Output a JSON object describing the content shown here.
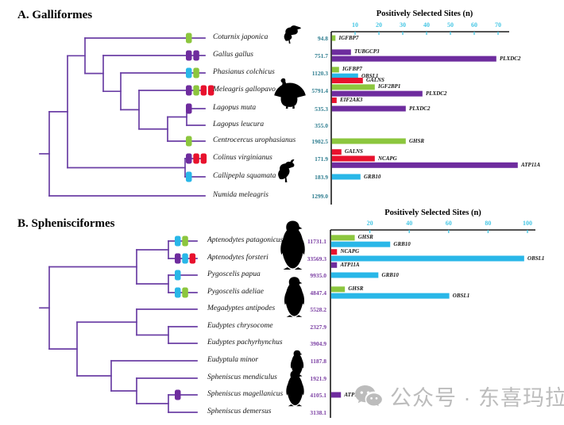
{
  "figure_titles": {
    "a": "A. Galliformes",
    "b": "B. Sphenisciformes"
  },
  "watermark": {
    "text": "公众号 · 东喜玛拉雅",
    "icon": "wechat-icon"
  },
  "colors": {
    "green": "#8CC63E",
    "purple": "#6E2C9E",
    "blue": "#29B7E8",
    "red": "#E8112D",
    "tree": "#6B3FA5",
    "axis_line": "#1a1a1a",
    "axis_tick": "#45C6E4",
    "value_a": "#2E7D8F",
    "value_b": "#7B3FA3",
    "silhouette": "#000000"
  },
  "chart_data": [
    {
      "type": "bar",
      "group": "A. Galliformes",
      "title": "Positively Selected Sites (n)",
      "xlabel": "Positively Selected Sites (n)",
      "axis_ticks": [
        10,
        20,
        30,
        40,
        50,
        60,
        70
      ],
      "xlim": [
        0,
        80
      ],
      "species": [
        {
          "name": "Coturnix japonica",
          "branch_value": "94.8",
          "markers": [
            "green"
          ],
          "bars": [
            {
              "gene": "IGFBP7",
              "color": "green",
              "n": 1.5
            }
          ],
          "bird": "quail"
        },
        {
          "name": "Gallus gallus",
          "branch_value": "751.7",
          "markers": [
            "purple",
            "purple"
          ],
          "bars": [
            {
              "gene": "TUBGCP3",
              "color": "purple",
              "n": 8
            },
            {
              "gene": "PLXDC2",
              "color": "purple",
              "n": 69
            }
          ]
        },
        {
          "name": "Phasianus colchicus",
          "branch_value": "1120.3",
          "markers": [
            "blue",
            "green"
          ],
          "bars": [
            {
              "gene": "IGFBP7",
              "color": "green",
              "n": 3
            },
            {
              "gene": "OBSL1",
              "color": "blue",
              "n": 11
            }
          ]
        },
        {
          "name": "Meleagris gallopavo",
          "branch_value": "5791.4",
          "markers": [
            "purple",
            "green",
            "red",
            "red"
          ],
          "bars": [
            {
              "gene": "GALNS",
              "color": "red",
              "n": 13
            },
            {
              "gene": "IGF2BP1",
              "color": "green",
              "n": 18
            },
            {
              "gene": "PLXDC2",
              "color": "purple",
              "n": 38
            },
            {
              "gene": "EIF2AK3",
              "color": "red",
              "n": 2
            }
          ],
          "bird": "turkey"
        },
        {
          "name": "Lagopus muta",
          "branch_value": "535.3",
          "markers": [
            "purple"
          ],
          "bars": [
            {
              "gene": "PLXDC2",
              "color": "purple",
              "n": 31
            }
          ]
        },
        {
          "name": "Lagopus leucura",
          "branch_value": "355.0",
          "markers": [],
          "bars": []
        },
        {
          "name": "Centrocercus urophasianus",
          "branch_value": "1902.5",
          "markers": [
            "green"
          ],
          "bars": [
            {
              "gene": "GHSR",
              "color": "green",
              "n": 31
            }
          ]
        },
        {
          "name": "Colinus virginianus",
          "branch_value": "171.9",
          "markers": [
            "purple",
            "red",
            "red"
          ],
          "bars": [
            {
              "gene": "GALNS",
              "color": "red",
              "n": 4
            },
            {
              "gene": "NCAPG",
              "color": "red",
              "n": 18
            },
            {
              "gene": "ATP11A",
              "color": "purple",
              "n": 78
            }
          ]
        },
        {
          "name": "Callipepla squamata",
          "branch_value": "183.9",
          "markers": [
            "blue"
          ],
          "bars": [
            {
              "gene": "GRB10",
              "color": "blue",
              "n": 12
            }
          ],
          "bird": "quail-crest"
        },
        {
          "name": "Numida meleagris",
          "branch_value": "1299.0",
          "markers": [],
          "bars": []
        }
      ],
      "tree": {
        "x": 62,
        "c": [
          {
            "x": 85,
            "c": [
              {
                "x": 107,
                "c": [
                  {
                    "leaf": 0
                  },
                  {
                    "x": 130,
                    "c": [
                      {
                        "leaf": 1
                      },
                      {
                        "x": 152,
                        "c": [
                          {
                            "leaf": 2
                          },
                          {
                            "x": 175,
                            "c": [
                              {
                                "leaf": 3
                              },
                              {
                                "x": 211,
                                "c": [
                                  {
                                    "x": 235,
                                    "c": [
                                      {
                                        "leaf": 4
                                      },
                                      {
                                        "leaf": 5
                                      }
                                    ]
                                  },
                                  {
                                    "leaf": 6
                                  }
                                ]
                              }
                            ]
                          }
                        ]
                      }
                    ]
                  }
                ]
              },
              {
                "x": 233,
                "c": [
                  {
                    "leaf": 7
                  },
                  {
                    "leaf": 8
                  }
                ]
              }
            ]
          },
          {
            "leaf": 9
          }
        ]
      }
    },
    {
      "type": "bar",
      "group": "B. Sphenisciformes",
      "title": "Positively Selected Sites (n)",
      "xlabel": "Positively Selected Sites (n)",
      "axis_ticks": [
        20,
        40,
        60,
        80,
        100
      ],
      "xlim": [
        0,
        105
      ],
      "species": [
        {
          "name": "Aptenodytes patagonicus",
          "branch_value": "11731.1",
          "markers": [
            "blue",
            "green"
          ],
          "bars": [
            {
              "gene": "GHSR",
              "color": "green",
              "n": 12
            },
            {
              "gene": "GRB10",
              "color": "blue",
              "n": 30
            }
          ],
          "bird": "penguin"
        },
        {
          "name": "Aptenodytes forsteri",
          "branch_value": "33569.3",
          "markers": [
            "purple",
            "blue",
            "red"
          ],
          "bars": [
            {
              "gene": "NCAPG",
              "color": "red",
              "n": 3
            },
            {
              "gene": "OBSL1",
              "color": "blue",
              "n": 98
            },
            {
              "gene": "ATP11A",
              "color": "purple",
              "n": 3
            }
          ]
        },
        {
          "name": "Pygoscelis papua",
          "branch_value": "9935.0",
          "markers": [
            "blue"
          ],
          "bars": [
            {
              "gene": "GRB10",
              "color": "blue",
              "n": 24
            }
          ]
        },
        {
          "name": "Pygoscelis adeliae",
          "branch_value": "4847.4",
          "markers": [
            "blue",
            "green"
          ],
          "bars": [
            {
              "gene": "GHSR",
              "color": "green",
              "n": 7
            },
            {
              "gene": "OBSL1",
              "color": "blue",
              "n": 60
            }
          ],
          "bird": "penguin"
        },
        {
          "name": "Megadyptes antipodes",
          "branch_value": "5528.2",
          "markers": [],
          "bars": []
        },
        {
          "name": "Eudyptes chrysocome",
          "branch_value": "2327.9",
          "markers": [],
          "bars": []
        },
        {
          "name": "Eudyptes pachyrhynchus",
          "branch_value": "3904.9",
          "markers": [],
          "bars": []
        },
        {
          "name": "Eudyptula minor",
          "branch_value": "1187.8",
          "markers": [],
          "bars": [],
          "bird": "penguin"
        },
        {
          "name": "Spheniscus mendiculus",
          "branch_value": "1921.9",
          "markers": [],
          "bars": []
        },
        {
          "name": "Spheniscus magellanicus",
          "branch_value": "4105.1",
          "markers": [
            "purple"
          ],
          "bars": [
            {
              "gene": "ATP11A",
              "color": "purple",
              "n": 5
            }
          ],
          "bird": "penguin"
        },
        {
          "name": "Spheniscus demersus",
          "branch_value": "3138.1",
          "markers": [],
          "bars": []
        }
      ],
      "tree": {
        "x": 62,
        "c": [
          {
            "x": 172,
            "c": [
              {
                "x": 212,
                "c": [
                  {
                    "leaf": 0
                  },
                  {
                    "leaf": 1
                  }
                ]
              },
              {
                "x": 212,
                "c": [
                  {
                    "leaf": 2
                  },
                  {
                    "leaf": 3
                  }
                ]
              }
            ]
          },
          {
            "x": 97,
            "c": [
              {
                "x": 172,
                "c": [
                  {
                    "leaf": 4
                  },
                  {
                    "x": 212,
                    "c": [
                      {
                        "leaf": 5
                      },
                      {
                        "leaf": 6
                      }
                    ]
                  }
                ]
              },
              {
                "x": 140,
                "c": [
                  {
                    "leaf": 7
                  },
                  {
                    "x": 172,
                    "c": [
                      {
                        "leaf": 8
                      },
                      {
                        "x": 212,
                        "c": [
                          {
                            "leaf": 9
                          },
                          {
                            "leaf": 10
                          }
                        ]
                      }
                    ]
                  }
                ]
              }
            ]
          }
        ]
      }
    }
  ]
}
